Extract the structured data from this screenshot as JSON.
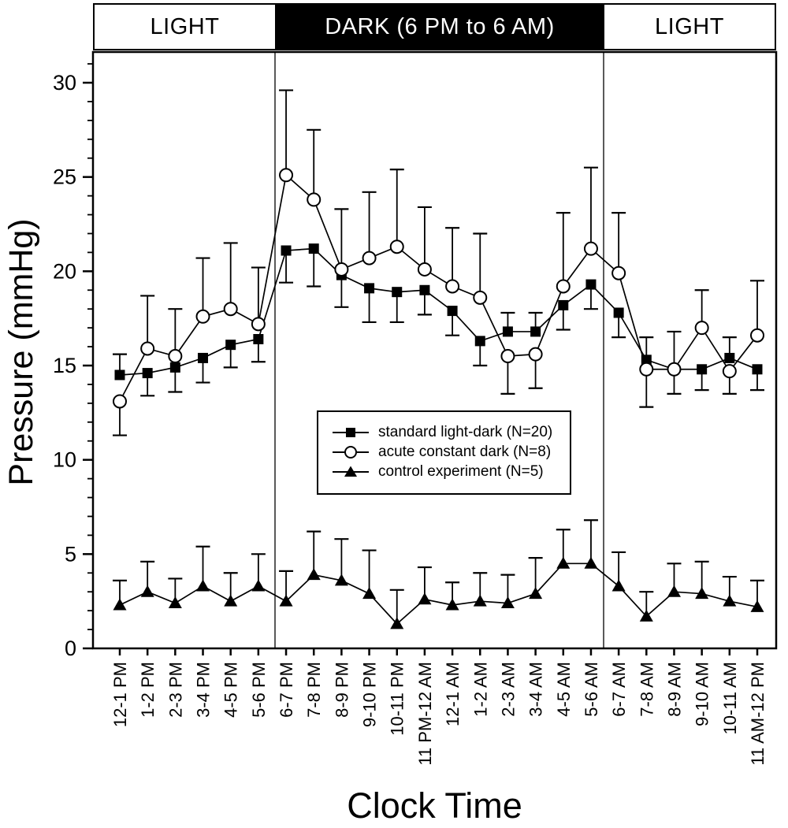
{
  "figure": {
    "background": "#ffffff",
    "foreground": "#000000",
    "period_bands": [
      {
        "label": "LIGHT",
        "fill": "#ffffff",
        "text_color": "#000000"
      },
      {
        "label": "DARK (6 PM to 6 AM)",
        "fill": "#000000",
        "text_color": "#ffffff"
      },
      {
        "label": "LIGHT",
        "fill": "#ffffff",
        "text_color": "#000000"
      }
    ]
  },
  "chart_data": {
    "type": "line",
    "title": "",
    "xlabel": "Clock Time",
    "ylabel": "Pressure (mmHg)",
    "ylim": [
      0,
      31.5
    ],
    "y_major_ticks": [
      0,
      5,
      10,
      15,
      20,
      25,
      30
    ],
    "y_minor_tick_step": 1,
    "grid": false,
    "legend_position": "inside-center",
    "error_bars": "one-sided whiskers with caps; direction chosen away from the neighboring series",
    "dark_period": {
      "starts_after_category_index": 5,
      "ends_after_category_index": 17
    },
    "categories": [
      "12-1 PM",
      "1-2 PM",
      "2-3 PM",
      "3-4 PM",
      "4-5 PM",
      "5-6 PM",
      "6-7 PM",
      "7-8 PM",
      "8-9 PM",
      "9-10 PM",
      "10-11 PM",
      "11 PM-12 AM",
      "12-1 AM",
      "1-2 AM",
      "2-3 AM",
      "3-4 AM",
      "4-5 AM",
      "5-6 AM",
      "6-7 AM",
      "7-8 AM",
      "8-9 AM",
      "9-10 AM",
      "10-11 AM",
      "11 AM-12 PM"
    ],
    "series": [
      {
        "name": "standard light-dark (N=20)",
        "marker": "filled-square",
        "values": [
          14.5,
          14.6,
          14.9,
          15.4,
          16.1,
          16.4,
          21.1,
          21.2,
          19.8,
          19.1,
          18.9,
          19.0,
          17.9,
          16.3,
          16.8,
          16.8,
          18.2,
          19.3,
          17.8,
          15.3,
          14.8,
          14.8,
          15.4,
          14.8
        ],
        "error": [
          1.1,
          1.2,
          1.3,
          1.3,
          1.2,
          1.2,
          1.7,
          2.0,
          1.7,
          1.8,
          1.6,
          1.3,
          1.3,
          1.3,
          1.0,
          1.0,
          1.3,
          1.3,
          1.3,
          1.2,
          2.0,
          1.1,
          1.1,
          1.1
        ],
        "error_direction": [
          "up",
          "down",
          "down",
          "down",
          "down",
          "down",
          "down",
          "down",
          "down",
          "down",
          "down",
          "down",
          "down",
          "down",
          "up",
          "up",
          "down",
          "down",
          "down",
          "up",
          "up",
          "down",
          "up",
          "down"
        ]
      },
      {
        "name": "acute constant dark (N=8)",
        "marker": "open-circle",
        "values": [
          13.1,
          15.9,
          15.5,
          17.6,
          18.0,
          17.2,
          25.1,
          23.8,
          20.1,
          20.7,
          21.3,
          20.1,
          19.2,
          18.6,
          15.5,
          15.6,
          19.2,
          21.2,
          19.9,
          14.8,
          14.8,
          17.0,
          14.7,
          16.6
        ],
        "error": [
          1.8,
          2.8,
          2.5,
          3.1,
          3.5,
          3.0,
          4.5,
          3.7,
          3.2,
          3.5,
          4.1,
          3.3,
          3.1,
          3.4,
          2.0,
          1.8,
          3.9,
          4.3,
          3.2,
          2.0,
          1.3,
          2.0,
          1.2,
          2.9
        ],
        "error_direction": [
          "down",
          "up",
          "up",
          "up",
          "up",
          "up",
          "up",
          "up",
          "up",
          "up",
          "up",
          "up",
          "up",
          "up",
          "down",
          "down",
          "up",
          "up",
          "up",
          "down",
          "down",
          "up",
          "down",
          "up"
        ]
      },
      {
        "name": "control experiment (N=5)",
        "marker": "filled-triangle",
        "values": [
          2.3,
          3.0,
          2.4,
          3.3,
          2.5,
          3.3,
          2.5,
          3.9,
          3.6,
          2.9,
          1.3,
          2.6,
          2.3,
          2.5,
          2.4,
          2.9,
          4.5,
          4.5,
          3.3,
          1.7,
          3.0,
          2.9,
          2.5,
          2.2
        ],
        "error": [
          1.3,
          1.6,
          1.3,
          2.1,
          1.5,
          1.7,
          1.6,
          2.3,
          2.2,
          2.3,
          1.8,
          1.7,
          1.2,
          1.5,
          1.5,
          1.9,
          1.8,
          2.3,
          1.8,
          1.3,
          1.5,
          1.7,
          1.3,
          1.4
        ],
        "error_direction": [
          "up",
          "up",
          "up",
          "up",
          "up",
          "up",
          "up",
          "up",
          "up",
          "up",
          "up",
          "up",
          "up",
          "up",
          "up",
          "up",
          "up",
          "up",
          "up",
          "up",
          "up",
          "up",
          "up",
          "up"
        ]
      }
    ]
  }
}
